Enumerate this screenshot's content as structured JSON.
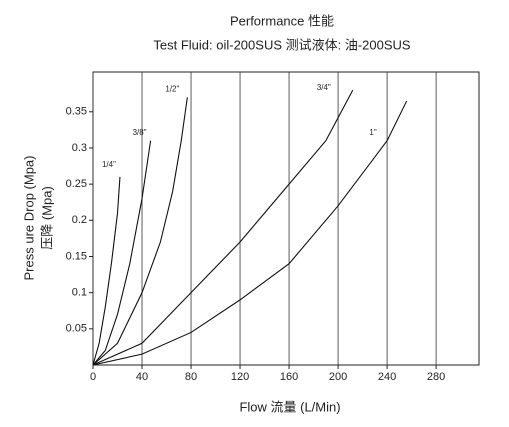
{
  "chart_data": {
    "type": "line",
    "title": "Performance 性能",
    "subtitle": "Test Fluid: oil-200SUS 测试液体: 油-200SUS",
    "x_label": "Flow 流量 (L/Min)",
    "y_label": [
      "Press ure Drop (Mpa)",
      "压降 (Mpa)"
    ],
    "xlim": [
      0,
      315
    ],
    "ylim": [
      0,
      0.405
    ],
    "xticks": [
      0,
      40,
      80,
      120,
      160,
      200,
      240,
      280
    ],
    "yticks": [
      0.05,
      0.1,
      0.15,
      0.2,
      0.25,
      0.3,
      0.35
    ],
    "grid": true,
    "series": [
      {
        "name": "1/4\"",
        "color": "#111111",
        "x": [
          0,
          5,
          10,
          15,
          20,
          22
        ],
        "values": [
          0,
          0.03,
          0.08,
          0.14,
          0.21,
          0.26
        ]
      },
      {
        "name": "3/8\"",
        "color": "#111111",
        "x": [
          0,
          10,
          20,
          30,
          40,
          47
        ],
        "values": [
          0,
          0.02,
          0.07,
          0.14,
          0.23,
          0.31
        ]
      },
      {
        "name": "1/2\"",
        "color": "#111111",
        "x": [
          0,
          20,
          40,
          55,
          65,
          72,
          77
        ],
        "values": [
          0,
          0.03,
          0.1,
          0.17,
          0.24,
          0.31,
          0.37
        ]
      },
      {
        "name": "3/4\"",
        "color": "#111111",
        "x": [
          0,
          40,
          80,
          120,
          160,
          190,
          212
        ],
        "values": [
          0,
          0.03,
          0.1,
          0.17,
          0.25,
          0.31,
          0.38
        ]
      },
      {
        "name": "1\"",
        "color": "#111111",
        "x": [
          0,
          40,
          80,
          120,
          160,
          200,
          240,
          256
        ],
        "values": [
          0,
          0.015,
          0.045,
          0.09,
          0.14,
          0.22,
          0.31,
          0.365
        ]
      }
    ]
  }
}
